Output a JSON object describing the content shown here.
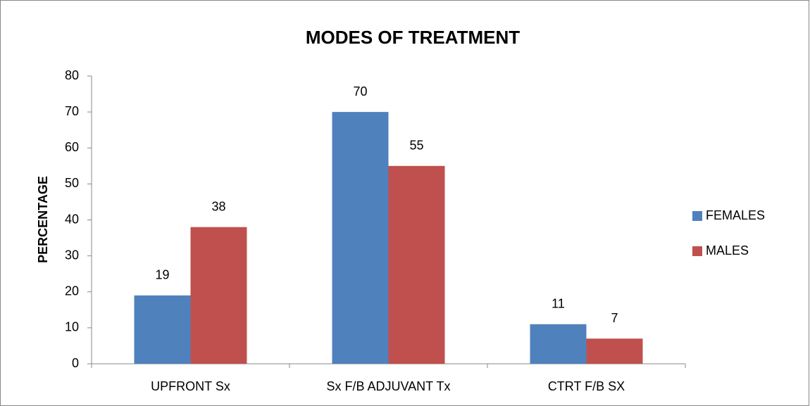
{
  "chart_data": {
    "type": "bar",
    "title": "MODES OF TREATMENT",
    "y_label": "PERCENTAGE",
    "categories": [
      "UPFRONT Sx",
      "Sx F/B ADJUVANT Tx",
      "CTRT F/B SX"
    ],
    "series": [
      {
        "name": "FEMALES",
        "color": "#4f81bd",
        "values": [
          19,
          70,
          11
        ]
      },
      {
        "name": "MALES",
        "color": "#c0504d",
        "values": [
          38,
          55,
          7
        ]
      }
    ],
    "ylim": [
      0,
      80
    ],
    "yticks": [
      0,
      10,
      20,
      30,
      40,
      50,
      60,
      70,
      80
    ],
    "grid": false,
    "legend": "right"
  }
}
